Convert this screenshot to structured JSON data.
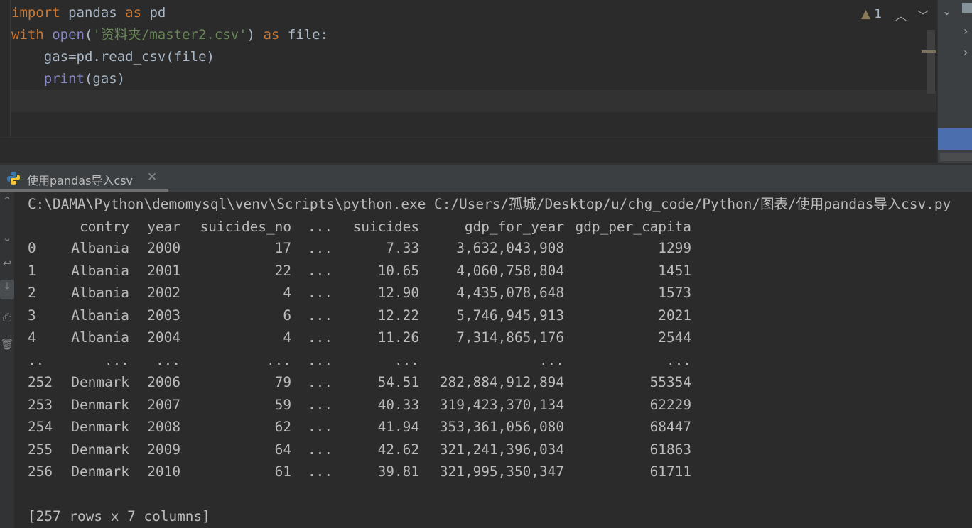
{
  "editor": {
    "lines": [
      [
        {
          "t": "import",
          "c": "kw"
        },
        {
          "t": " pandas ",
          "c": ""
        },
        {
          "t": "as",
          "c": "kw"
        },
        {
          "t": " pd",
          "c": ""
        }
      ],
      [
        {
          "t": "with",
          "c": "kw"
        },
        {
          "t": " ",
          "c": ""
        },
        {
          "t": "open",
          "c": "bi"
        },
        {
          "t": "(",
          "c": ""
        },
        {
          "t": "'资料夹/master2.csv'",
          "c": "str"
        },
        {
          "t": ") ",
          "c": ""
        },
        {
          "t": "as",
          "c": "kw"
        },
        {
          "t": " file:",
          "c": ""
        }
      ],
      [
        {
          "t": "    gas=pd.read_csv(file)",
          "c": ""
        }
      ],
      [
        {
          "t": "    ",
          "c": ""
        },
        {
          "t": "print",
          "c": "bi"
        },
        {
          "t": "(gas)",
          "c": ""
        }
      ],
      []
    ],
    "warning_count": "1"
  },
  "run_tab": {
    "label": "使用pandas导入csv"
  },
  "console": {
    "command": "C:\\DAMA\\Python\\demomysql\\venv\\Scripts\\python.exe C:/Users/孤城/Desktop/u/chg_code/Python/图表/使用pandas导入csv.py",
    "columns": [
      "",
      "contry",
      "year",
      "suicides_no",
      "...",
      "suicides",
      "gdp_for_year",
      "gdp_per_capita"
    ],
    "rows": [
      [
        "0",
        "Albania",
        "2000",
        "17",
        "...",
        "7.33",
        "3,632,043,908",
        "1299"
      ],
      [
        "1",
        "Albania",
        "2001",
        "22",
        "...",
        "10.65",
        "4,060,758,804",
        "1451"
      ],
      [
        "2",
        "Albania",
        "2002",
        "4",
        "...",
        "12.90",
        "4,435,078,648",
        "1573"
      ],
      [
        "3",
        "Albania",
        "2003",
        "6",
        "...",
        "12.22",
        "5,746,945,913",
        "2021"
      ],
      [
        "4",
        "Albania",
        "2004",
        "4",
        "...",
        "11.26",
        "7,314,865,176",
        "2544"
      ],
      [
        "..",
        "...",
        "...",
        "...",
        "...",
        "...",
        "...",
        "..."
      ],
      [
        "252",
        "Denmark",
        "2006",
        "79",
        "...",
        "54.51",
        "282,884,912,894",
        "55354"
      ],
      [
        "253",
        "Denmark",
        "2007",
        "59",
        "...",
        "40.33",
        "319,423,370,134",
        "62229"
      ],
      [
        "254",
        "Denmark",
        "2008",
        "62",
        "...",
        "41.94",
        "353,361,056,080",
        "68447"
      ],
      [
        "255",
        "Denmark",
        "2009",
        "64",
        "...",
        "42.62",
        "321,241,396,034",
        "61863"
      ],
      [
        "256",
        "Denmark",
        "2010",
        "61",
        "...",
        "39.81",
        "321,995,350,347",
        "61711"
      ]
    ],
    "summary": "[257 rows x 7 columns]"
  },
  "colors": {
    "keyword": "#cc7832",
    "builtin": "#8888c6",
    "string": "#6a8759",
    "text": "#a9b7c6",
    "selection": "#4b6eaf"
  }
}
